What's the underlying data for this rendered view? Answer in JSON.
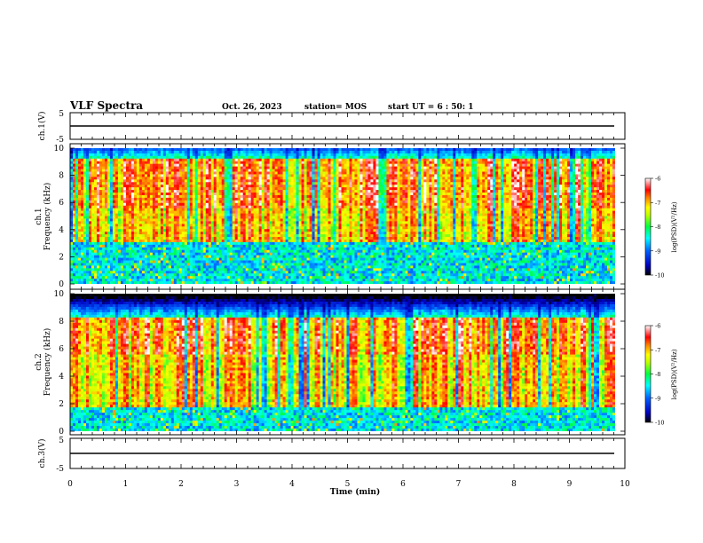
{
  "header": {
    "title": "VLF Spectra",
    "date": "Oct. 26, 2023",
    "station": "station= MOS",
    "start_ut": "start  UT =  6 : 50: 1"
  },
  "colors": {
    "background": "#ffffff",
    "axis": "#000000",
    "colormap": [
      "#000000",
      "#0000a0",
      "#0000ff",
      "#00a0ff",
      "#00ffff",
      "#00ff60",
      "#80ff00",
      "#ffff00",
      "#ffa000",
      "#ff2000",
      "#ff0000",
      "#ff8080",
      "#ffffff"
    ]
  },
  "chart_data": [
    {
      "type": "line",
      "name": "ch1-waveform",
      "ylabel": "ch.1(V)",
      "ylim": [
        -5,
        5
      ],
      "yticks": [
        "5",
        "-5"
      ],
      "xlim": [
        0,
        10
      ],
      "trace_level": 0,
      "grid": false
    },
    {
      "type": "heatmap",
      "name": "ch1-spectrogram",
      "ylabel_lines": [
        "ch.1",
        "Frequency  (kHz)"
      ],
      "ylim": [
        0,
        10
      ],
      "yticks": [
        "0",
        "2",
        "4",
        "6",
        "8",
        "10"
      ],
      "xlim": [
        0,
        9.83
      ],
      "colorbar": {
        "label": "log(PSD)(V²/Hz)",
        "range": [
          -10,
          -6
        ],
        "ticks": [
          "-6",
          "-7",
          "-8",
          "-9",
          "-10"
        ]
      }
    },
    {
      "type": "heatmap",
      "name": "ch2-spectrogram",
      "ylabel_lines": [
        "ch.2",
        "Frequency  (kHz)"
      ],
      "ylim": [
        0,
        10
      ],
      "yticks": [
        "0",
        "2",
        "4",
        "6",
        "8",
        "10"
      ],
      "xlim": [
        0,
        9.83
      ],
      "colorbar": {
        "label": "log(PSD)(V²/Hz)",
        "range": [
          -10,
          -6
        ],
        "ticks": [
          "-6",
          "-7",
          "-8",
          "-9",
          "-10"
        ]
      }
    },
    {
      "type": "line",
      "name": "ch3-waveform",
      "ylabel": "ch.3(V)",
      "ylim": [
        -5,
        5
      ],
      "yticks": [
        "5",
        "-5"
      ],
      "xlim": [
        0,
        10
      ],
      "trace_level": 0,
      "grid": false
    }
  ],
  "x_axis": {
    "label": "Time  (min)",
    "range": [
      0,
      10
    ],
    "ticks": [
      "0",
      "1",
      "2",
      "3",
      "4",
      "5",
      "6",
      "7",
      "8",
      "9",
      "10"
    ]
  }
}
